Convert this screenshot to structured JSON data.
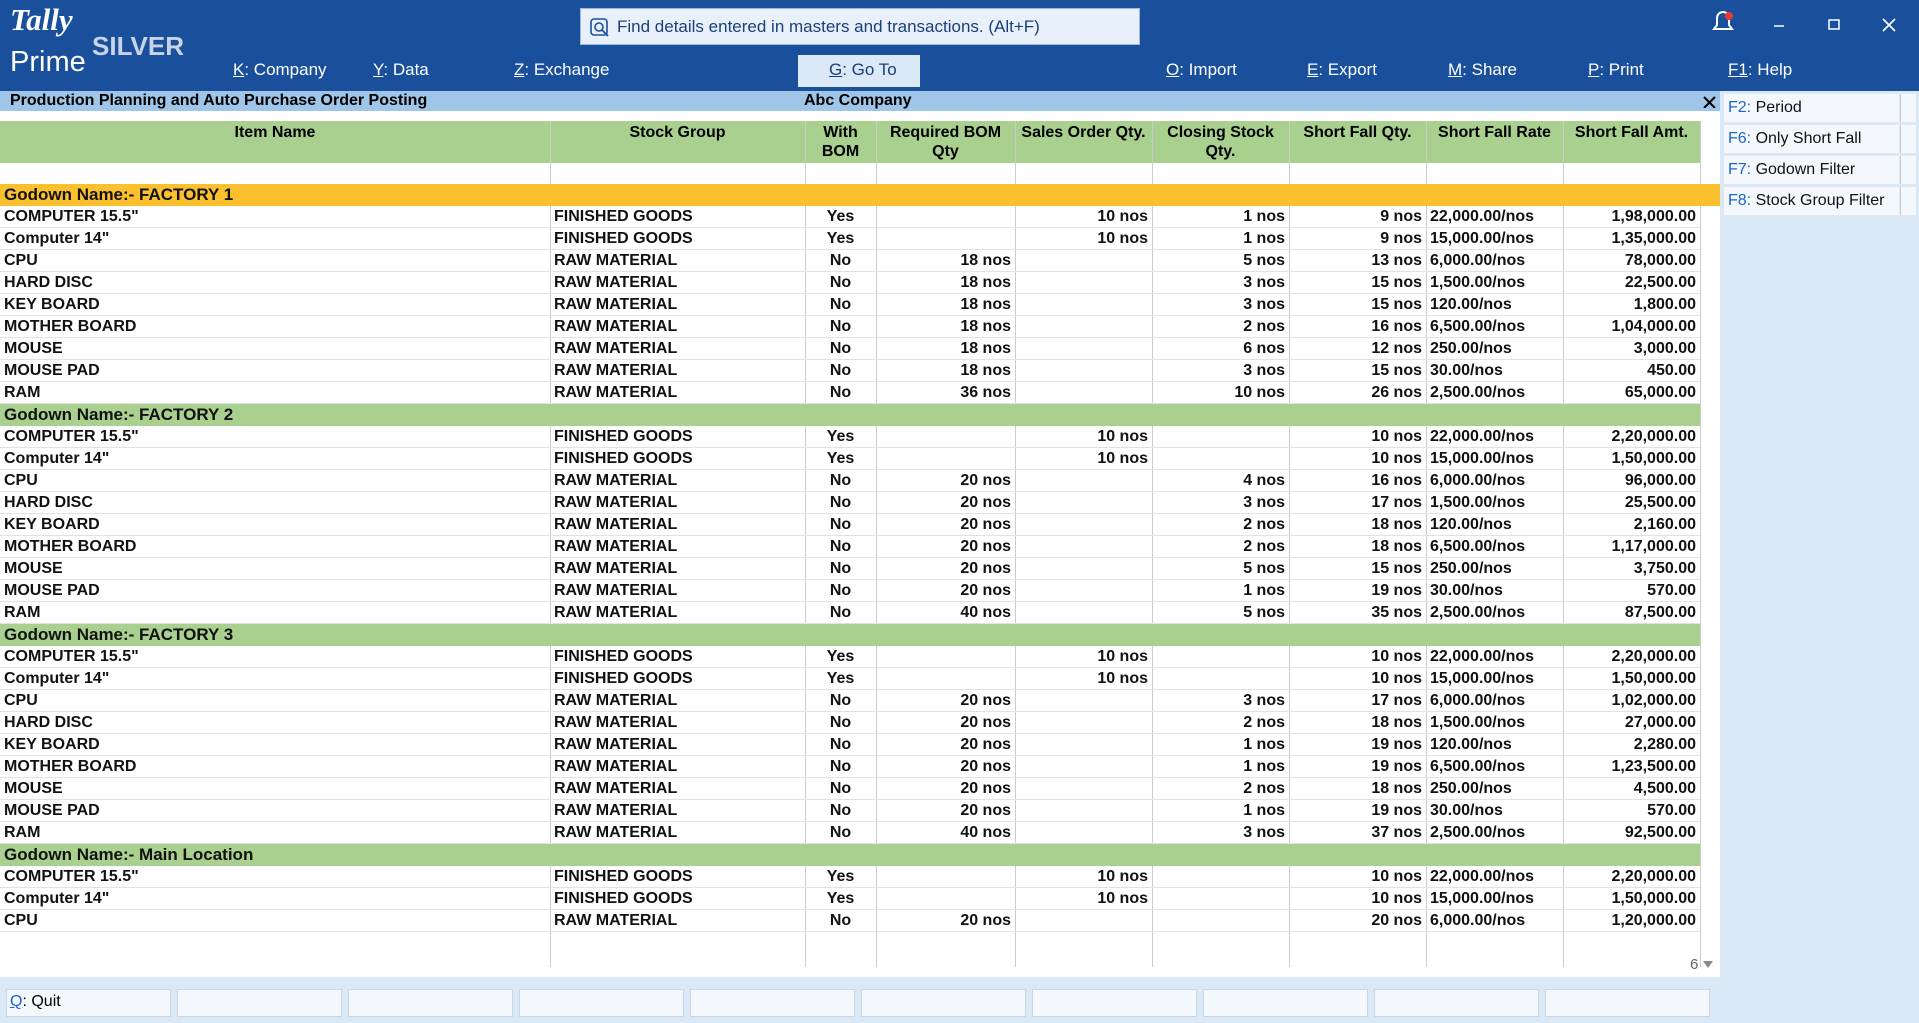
{
  "header": {
    "logo_top": "Tally",
    "logo_bottom": "Prime",
    "edition": "SILVER",
    "search": "Find details entered in masters and transactions. (Alt+F)"
  },
  "menu": [
    {
      "key": "K",
      "label": ": Company"
    },
    {
      "key": "Y",
      "label": ": Data"
    },
    {
      "key": "Z",
      "label": ": Exchange"
    },
    {
      "key": "G",
      "label": ": Go To"
    },
    {
      "key": "O",
      "label": ": Import"
    },
    {
      "key": "E",
      "label": ": Export"
    },
    {
      "key": "M",
      "label": ": Share"
    },
    {
      "key": "P",
      "label": ": Print"
    },
    {
      "key": "F1",
      "label": ": Help"
    }
  ],
  "report": {
    "title": "Production Planning and Auto Purchase Order Posting",
    "company": "Abc Company"
  },
  "columns": [
    "Item Name",
    "Stock Group",
    "With BOM",
    "Required BOM Qty",
    "Sales Order Qty.",
    "Closing Stock Qty.",
    "Short Fall Qty.",
    "Short Fall Rate",
    "Short Fall Amt."
  ],
  "groups": [
    {
      "name": "Godown Name:- FACTORY 1",
      "rows": [
        [
          "COMPUTER 15.5\"",
          "FINISHED GOODS",
          "Yes",
          null,
          "10 nos",
          "1 nos",
          "9 nos",
          "22,000.00/nos",
          "1,98,000.00"
        ],
        [
          "Computer 14\"",
          "FINISHED GOODS",
          "Yes",
          null,
          "10 nos",
          "1 nos",
          "9 nos",
          "15,000.00/nos",
          "1,35,000.00"
        ],
        [
          "CPU",
          "RAW MATERIAL",
          "No",
          "18 nos",
          null,
          "5 nos",
          "13 nos",
          "6,000.00/nos",
          "78,000.00"
        ],
        [
          "HARD DISC",
          "RAW MATERIAL",
          "No",
          "18 nos",
          null,
          "3 nos",
          "15 nos",
          "1,500.00/nos",
          "22,500.00"
        ],
        [
          "KEY BOARD",
          "RAW MATERIAL",
          "No",
          "18 nos",
          null,
          "3 nos",
          "15 nos",
          "120.00/nos",
          "1,800.00"
        ],
        [
          "MOTHER BOARD",
          "RAW MATERIAL",
          "No",
          "18 nos",
          null,
          "2 nos",
          "16 nos",
          "6,500.00/nos",
          "1,04,000.00"
        ],
        [
          "MOUSE",
          "RAW MATERIAL",
          "No",
          "18 nos",
          null,
          "6 nos",
          "12 nos",
          "250.00/nos",
          "3,000.00"
        ],
        [
          "MOUSE PAD",
          "RAW MATERIAL",
          "No",
          "18 nos",
          null,
          "3 nos",
          "15 nos",
          "30.00/nos",
          "450.00"
        ],
        [
          "RAM",
          "RAW MATERIAL",
          "No",
          "36 nos",
          null,
          "10 nos",
          "26 nos",
          "2,500.00/nos",
          "65,000.00"
        ]
      ]
    },
    {
      "name": "Godown Name:- FACTORY 2",
      "rows": [
        [
          "COMPUTER 15.5\"",
          "FINISHED GOODS",
          "Yes",
          null,
          "10 nos",
          null,
          "10 nos",
          "22,000.00/nos",
          "2,20,000.00"
        ],
        [
          "Computer 14\"",
          "FINISHED GOODS",
          "Yes",
          null,
          "10 nos",
          null,
          "10 nos",
          "15,000.00/nos",
          "1,50,000.00"
        ],
        [
          "CPU",
          "RAW MATERIAL",
          "No",
          "20 nos",
          null,
          "4 nos",
          "16 nos",
          "6,000.00/nos",
          "96,000.00"
        ],
        [
          "HARD DISC",
          "RAW MATERIAL",
          "No",
          "20 nos",
          null,
          "3 nos",
          "17 nos",
          "1,500.00/nos",
          "25,500.00"
        ],
        [
          "KEY BOARD",
          "RAW MATERIAL",
          "No",
          "20 nos",
          null,
          "2 nos",
          "18 nos",
          "120.00/nos",
          "2,160.00"
        ],
        [
          "MOTHER BOARD",
          "RAW MATERIAL",
          "No",
          "20 nos",
          null,
          "2 nos",
          "18 nos",
          "6,500.00/nos",
          "1,17,000.00"
        ],
        [
          "MOUSE",
          "RAW MATERIAL",
          "No",
          "20 nos",
          null,
          "5 nos",
          "15 nos",
          "250.00/nos",
          "3,750.00"
        ],
        [
          "MOUSE PAD",
          "RAW MATERIAL",
          "No",
          "20 nos",
          null,
          "1 nos",
          "19 nos",
          "30.00/nos",
          "570.00"
        ],
        [
          "RAM",
          "RAW MATERIAL",
          "No",
          "40 nos",
          null,
          "5 nos",
          "35 nos",
          "2,500.00/nos",
          "87,500.00"
        ]
      ]
    },
    {
      "name": "Godown Name:- FACTORY 3",
      "rows": [
        [
          "COMPUTER 15.5\"",
          "FINISHED GOODS",
          "Yes",
          null,
          "10 nos",
          null,
          "10 nos",
          "22,000.00/nos",
          "2,20,000.00"
        ],
        [
          "Computer 14\"",
          "FINISHED GOODS",
          "Yes",
          null,
          "10 nos",
          null,
          "10 nos",
          "15,000.00/nos",
          "1,50,000.00"
        ],
        [
          "CPU",
          "RAW MATERIAL",
          "No",
          "20 nos",
          null,
          "3 nos",
          "17 nos",
          "6,000.00/nos",
          "1,02,000.00"
        ],
        [
          "HARD DISC",
          "RAW MATERIAL",
          "No",
          "20 nos",
          null,
          "2 nos",
          "18 nos",
          "1,500.00/nos",
          "27,000.00"
        ],
        [
          "KEY BOARD",
          "RAW MATERIAL",
          "No",
          "20 nos",
          null,
          "1 nos",
          "19 nos",
          "120.00/nos",
          "2,280.00"
        ],
        [
          "MOTHER BOARD",
          "RAW MATERIAL",
          "No",
          "20 nos",
          null,
          "1 nos",
          "19 nos",
          "6,500.00/nos",
          "1,23,500.00"
        ],
        [
          "MOUSE",
          "RAW MATERIAL",
          "No",
          "20 nos",
          null,
          "2 nos",
          "18 nos",
          "250.00/nos",
          "4,500.00"
        ],
        [
          "MOUSE PAD",
          "RAW MATERIAL",
          "No",
          "20 nos",
          null,
          "1 nos",
          "19 nos",
          "30.00/nos",
          "570.00"
        ],
        [
          "RAM",
          "RAW MATERIAL",
          "No",
          "40 nos",
          null,
          "3 nos",
          "37 nos",
          "2,500.00/nos",
          "92,500.00"
        ]
      ]
    },
    {
      "name": "Godown Name:- Main Location",
      "rows": [
        [
          "COMPUTER 15.5\"",
          "FINISHED GOODS",
          "Yes",
          null,
          "10 nos",
          null,
          "10 nos",
          "22,000.00/nos",
          "2,20,000.00"
        ],
        [
          "Computer 14\"",
          "FINISHED GOODS",
          "Yes",
          null,
          "10 nos",
          null,
          "10 nos",
          "15,000.00/nos",
          "1,50,000.00"
        ],
        [
          "CPU",
          "RAW MATERIAL",
          "No",
          "20 nos",
          null,
          null,
          "20 nos",
          "6,000.00/nos",
          "1,20,000.00"
        ]
      ]
    }
  ],
  "side_buttons": [
    {
      "key": "F2:",
      "label": " Period"
    },
    {
      "key": "F6:",
      "label": " Only Short Fall"
    },
    {
      "key": "F7:",
      "label": " Godown Filter"
    },
    {
      "key": "F8:",
      "label": " Stock Group Filter"
    }
  ],
  "page_number": "6",
  "footer": [
    {
      "key": "Q",
      "label": ": Quit"
    }
  ]
}
